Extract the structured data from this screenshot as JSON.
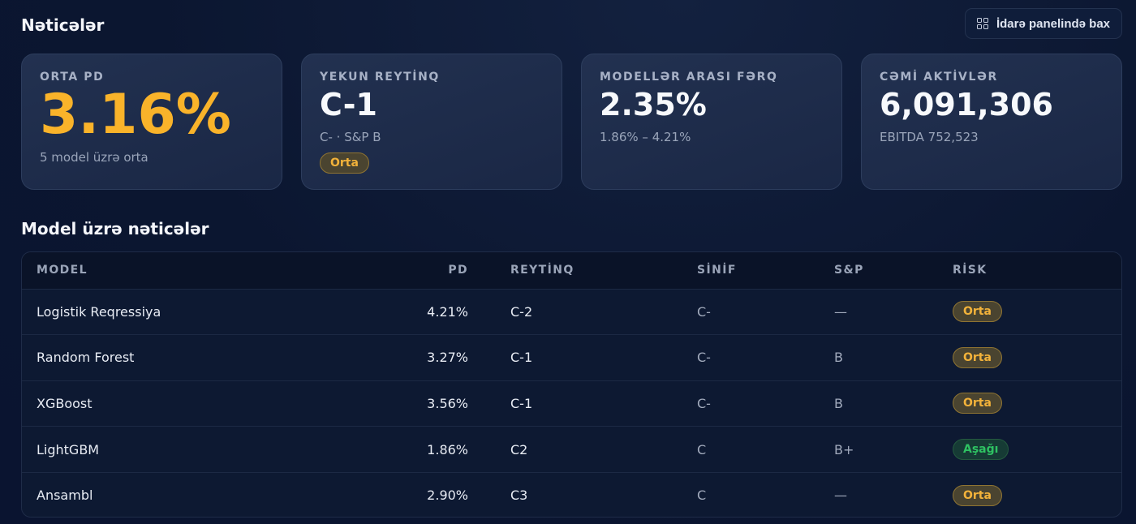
{
  "header": {
    "title": "Nəticələr",
    "dashboard_button": "İdarə panelində bax",
    "dashboard_icon": "grid-icon"
  },
  "cards": [
    {
      "label": "ORTA PD",
      "value": "3.16%",
      "sub": "5 model üzrə orta",
      "value_color": "#f9b32a"
    },
    {
      "label": "YEKUN REYTİNQ",
      "value": "C-1",
      "sub": "C- · S&P B",
      "badge": "Orta"
    },
    {
      "label": "MODELLƏR ARASI FƏRQ",
      "value": "2.35%",
      "sub": "1.86% – 4.21%"
    },
    {
      "label": "CƏMİ AKTİVLƏR",
      "value": "6,091,306",
      "sub": "EBITDA 752,523"
    }
  ],
  "results": {
    "title": "Model üzrə nəticələr",
    "columns": [
      "MODEL",
      "PD",
      "REYTİNQ",
      "SİNİF",
      "S&P",
      "RİSK"
    ],
    "rows": [
      {
        "model": "Logistik Reqressiya",
        "pd": "4.21%",
        "rating": "C-2",
        "class": "C-",
        "sp": "—",
        "risk": "Orta",
        "risk_level": "orta"
      },
      {
        "model": "Random Forest",
        "pd": "3.27%",
        "rating": "C-1",
        "class": "C-",
        "sp": "B",
        "risk": "Orta",
        "risk_level": "orta"
      },
      {
        "model": "XGBoost",
        "pd": "3.56%",
        "rating": "C-1",
        "class": "C-",
        "sp": "B",
        "risk": "Orta",
        "risk_level": "orta"
      },
      {
        "model": "LightGBM",
        "pd": "1.86%",
        "rating": "C2",
        "class": "C",
        "sp": "B+",
        "risk": "Aşağı",
        "risk_level": "asagi"
      },
      {
        "model": "Ansambl",
        "pd": "2.90%",
        "rating": "C3",
        "class": "C",
        "sp": "—",
        "risk": "Orta",
        "risk_level": "orta"
      }
    ]
  },
  "colors": {
    "accent": "#f9b32a",
    "risk_medium": "#f2b23a",
    "risk_low": "#2ec262"
  }
}
